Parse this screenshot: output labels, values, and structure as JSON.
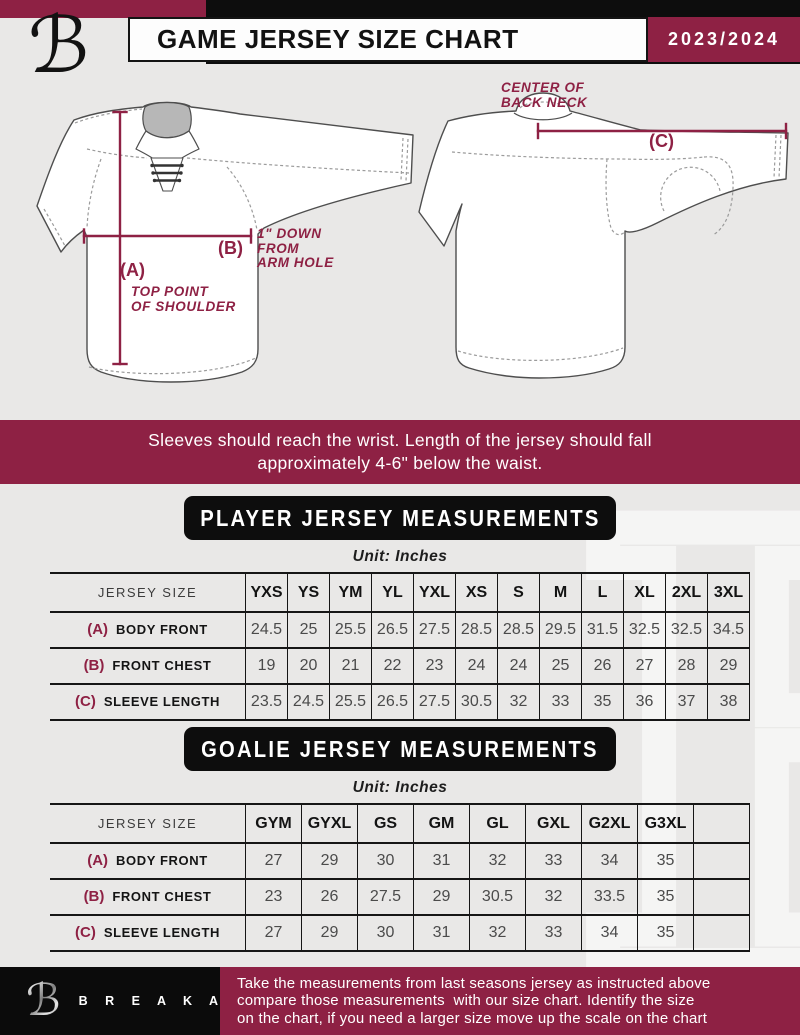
{
  "colors": {
    "maroon": "#8e2144",
    "black": "#0d0d0d",
    "page_background": "#e9e8e7",
    "table_value_gray": "#4b4b4b",
    "jersey_outline": "#4e4e4e"
  },
  "header": {
    "logo_icon": "breakaway-b-logo",
    "logo_glyph": "ℬ",
    "title": "GAME JERSEY SIZE CHART",
    "season": "2023/2024"
  },
  "diagram": {
    "annotations": {
      "a_tag": "(A)",
      "a_line1": "TOP POINT",
      "a_line2": "OF SHOULDER",
      "b_tag": "(B)",
      "b_line1": "1\" DOWN",
      "b_line2": "FROM",
      "b_line3": "ARM HOLE",
      "c_tag": "(C)",
      "c_line1": "CENTER OF",
      "c_line2": "BACK NECK"
    }
  },
  "notice": {
    "line1": "Sleeves should reach the wrist. Length of the jersey should fall",
    "line2": "approximately 4-6\" below the waist."
  },
  "player_section": {
    "title": "PLAYER JERSEY MEASUREMENTS",
    "unit": "Unit: Inches",
    "table": {
      "size_header": "JERSEY SIZE",
      "sizes": [
        "YXS",
        "YS",
        "YM",
        "YL",
        "YXL",
        "XS",
        "S",
        "M",
        "L",
        "XL",
        "2XL",
        "3XL"
      ],
      "trailing_blank": false,
      "rows": [
        {
          "tag": "(A)",
          "label": "BODY FRONT",
          "values": [
            "24.5",
            "25",
            "25.5",
            "26.5",
            "27.5",
            "28.5",
            "28.5",
            "29.5",
            "31.5",
            "32.5",
            "32.5",
            "34.5"
          ]
        },
        {
          "tag": "(B)",
          "label": "FRONT CHEST",
          "values": [
            "19",
            "20",
            "21",
            "22",
            "23",
            "24",
            "24",
            "25",
            "26",
            "27",
            "28",
            "29"
          ]
        },
        {
          "tag": "(C)",
          "label": "SLEEVE LENGTH",
          "values": [
            "23.5",
            "24.5",
            "25.5",
            "26.5",
            "27.5",
            "30.5",
            "32",
            "33",
            "35",
            "36",
            "37",
            "38"
          ]
        }
      ]
    }
  },
  "goalie_section": {
    "title": "GOALIE JERSEY MEASUREMENTS",
    "unit": "Unit: Inches",
    "table": {
      "size_header": "JERSEY SIZE",
      "sizes": [
        "GYM",
        "GYXL",
        "GS",
        "GM",
        "GL",
        "GXL",
        "G2XL",
        "G3XL"
      ],
      "trailing_blank": true,
      "rows": [
        {
          "tag": "(A)",
          "label": "BODY FRONT",
          "values": [
            "27",
            "29",
            "30",
            "31",
            "32",
            "33",
            "34",
            "35"
          ]
        },
        {
          "tag": "(B)",
          "label": "FRONT CHEST",
          "values": [
            "23",
            "26",
            "27.5",
            "29",
            "30.5",
            "32",
            "33.5",
            "35"
          ]
        },
        {
          "tag": "(C)",
          "label": "SLEEVE LENGTH",
          "values": [
            "27",
            "29",
            "30",
            "31",
            "32",
            "33",
            "34",
            "35"
          ]
        }
      ]
    }
  },
  "footer": {
    "logo_icon": "breakaway-b-logo",
    "logo_glyph": "ℬ",
    "brand": "B R E A K A W A Y",
    "line1": "Take the measurements from last seasons jersey as instructed above",
    "line2": "compare those measurements  with our size chart. Identify the size",
    "line3": "on the chart, if you need a larger size move up the scale on the chart"
  }
}
